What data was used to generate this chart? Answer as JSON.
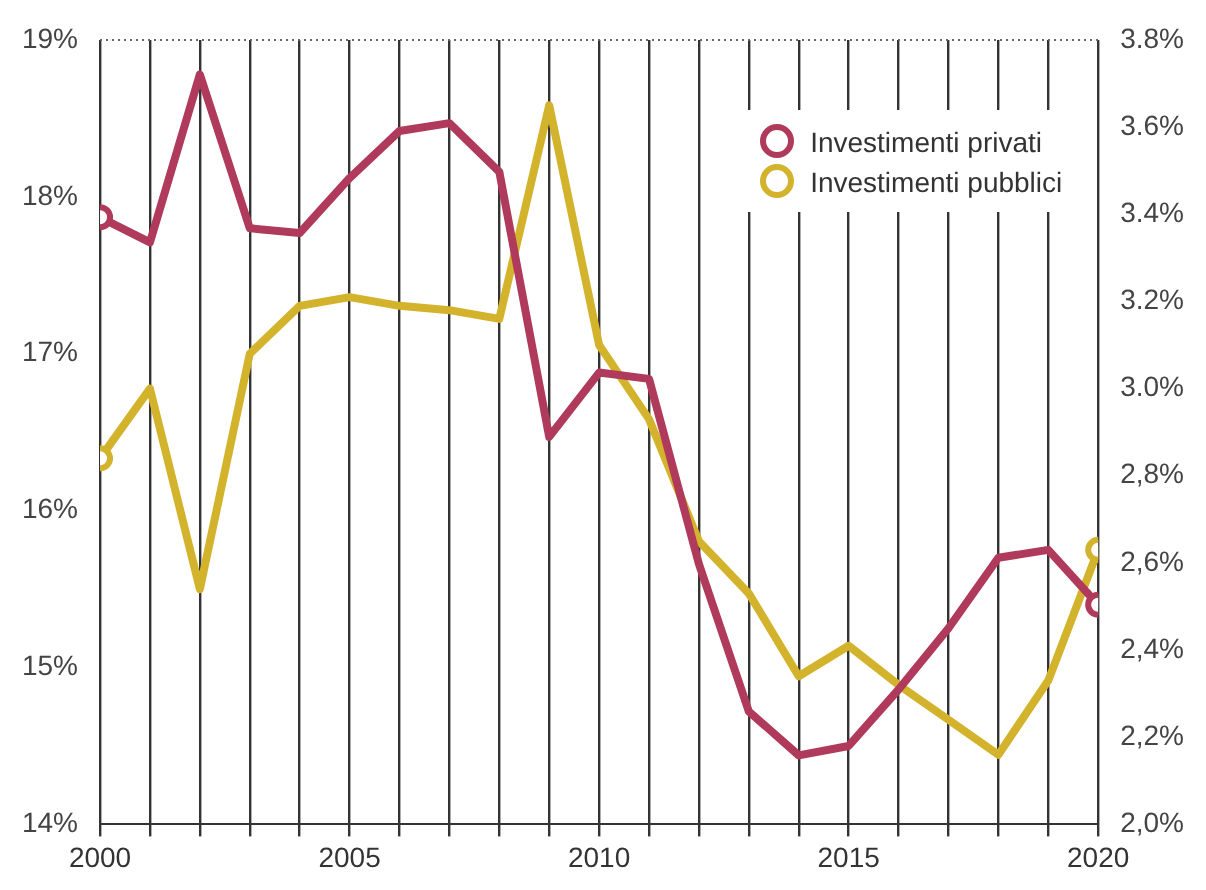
{
  "chart_data": {
    "type": "line",
    "x": [
      2000,
      2001,
      2002,
      2003,
      2004,
      2005,
      2006,
      2007,
      2008,
      2009,
      2010,
      2011,
      2012,
      2013,
      2014,
      2015,
      2016,
      2017,
      2018,
      2019,
      2020
    ],
    "series": [
      {
        "name": "Investimenti privati",
        "color": "#b03a5b",
        "values": [
          17.87,
          17.71,
          18.78,
          17.8,
          17.77,
          18.12,
          18.42,
          18.47,
          18.16,
          16.47,
          16.88,
          16.84,
          15.66,
          14.72,
          14.44,
          14.5,
          14.86,
          15.25,
          15.7,
          15.75,
          15.4
        ]
      },
      {
        "name": "Investimenti pubblici",
        "color": "#d4b32c",
        "axis": "y2",
        "values": [
          2.84,
          3.0,
          2.54,
          3.08,
          3.19,
          3.21,
          3.19,
          3.18,
          3.16,
          3.65,
          3.1,
          2.93,
          2.65,
          2.53,
          2.34,
          2.41,
          2.32,
          2.24,
          2.16,
          2.33,
          2.63
        ]
      }
    ],
    "xlim": [
      2000,
      2020
    ],
    "xticks": [
      2000,
      {
        "value": 2001,
        "label": null
      },
      {
        "value": 2002,
        "label": null
      },
      {
        "value": 2003,
        "label": null
      },
      {
        "value": 2004,
        "label": null
      },
      2005,
      {
        "value": 2006,
        "label": null
      },
      {
        "value": 2007,
        "label": null
      },
      {
        "value": 2008,
        "label": null
      },
      {
        "value": 2009,
        "label": null
      },
      2010,
      {
        "value": 2011,
        "label": null
      },
      {
        "value": 2012,
        "label": null
      },
      {
        "value": 2013,
        "label": null
      },
      {
        "value": 2014,
        "label": null
      },
      2015,
      {
        "value": 2016,
        "label": null
      },
      {
        "value": 2017,
        "label": null
      },
      {
        "value": 2018,
        "label": null
      },
      {
        "value": 2019,
        "label": null
      },
      2020
    ],
    "ylim": [
      14,
      19
    ],
    "yticks": [
      {
        "value": 14,
        "label": "14%"
      },
      {
        "value": 15,
        "label": "15%"
      },
      {
        "value": 16,
        "label": "16%"
      },
      {
        "value": 17,
        "label": "17%"
      },
      {
        "value": 18,
        "label": "18%"
      },
      {
        "value": 19,
        "label": "19%"
      }
    ],
    "y2lim": [
      2.0,
      3.8
    ],
    "y2ticks": [
      {
        "value": 2.0,
        "label": "2,0%"
      },
      {
        "value": 2.2,
        "label": "2,2%"
      },
      {
        "value": 2.4,
        "label": "2,4%"
      },
      {
        "value": 2.6,
        "label": "2,6%"
      },
      {
        "value": 2.8,
        "label": "2,8%"
      },
      {
        "value": 3.0,
        "label": "3.0%"
      },
      {
        "value": 3.2,
        "label": "3.2%"
      },
      {
        "value": 3.4,
        "label": "3.4%"
      },
      {
        "value": 3.6,
        "label": "3.6%"
      },
      {
        "value": 3.8,
        "label": "3.8%"
      }
    ],
    "grid": "x",
    "legend": "top right",
    "line_style": "solid"
  }
}
